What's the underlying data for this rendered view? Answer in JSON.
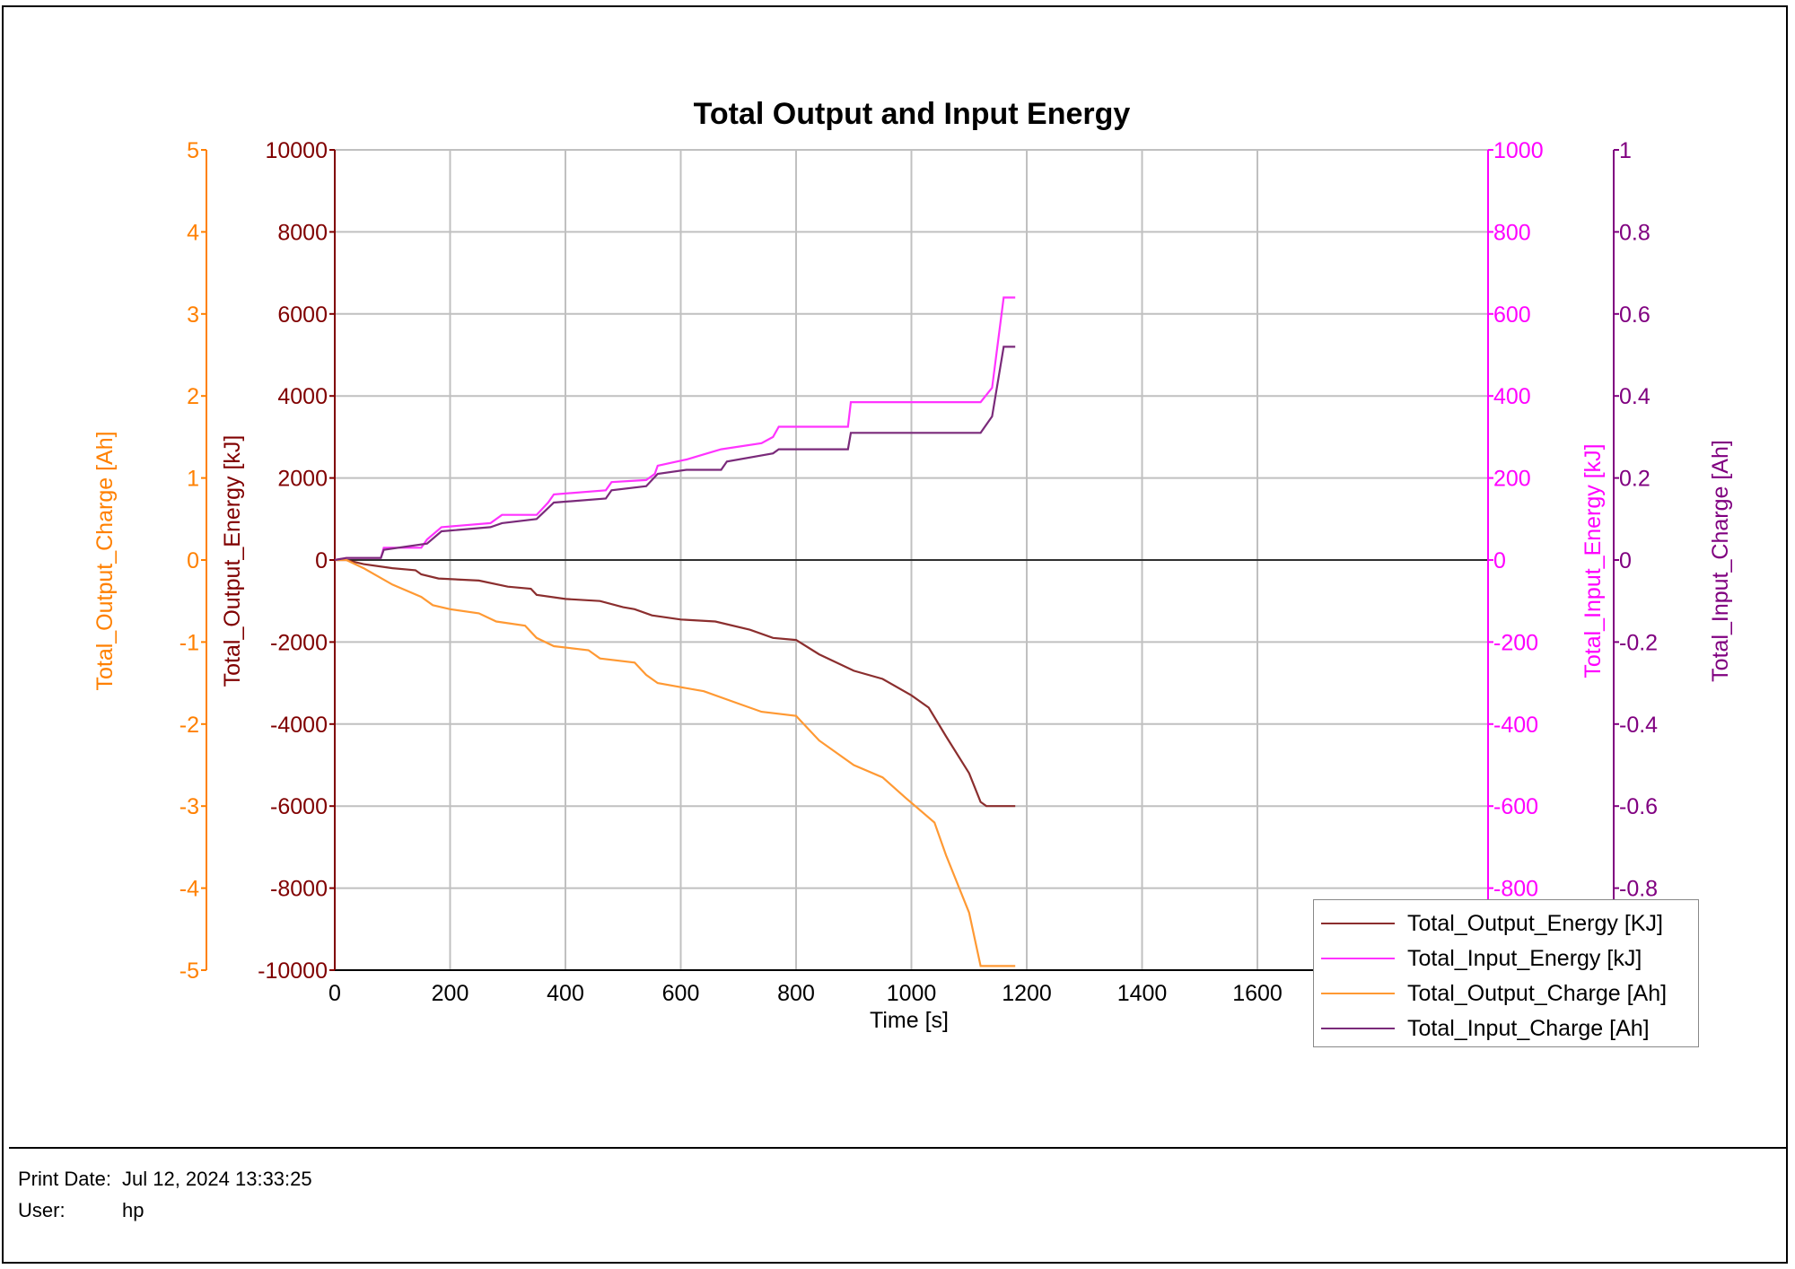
{
  "footer": {
    "print_date_label": "Print Date:",
    "print_date_value": "Jul 12, 2024 13:33:25",
    "user_label": "User:",
    "user_value": "hp"
  },
  "chart_data": {
    "type": "line",
    "title": "Total Output and Input Energy",
    "xlabel": "Time [s]",
    "xlim": [
      0,
      2000
    ],
    "xticks": [
      0,
      200,
      400,
      600,
      800,
      1000,
      1200,
      1400,
      1600
    ],
    "grid": true,
    "legend_position": "bottom-right",
    "axes": {
      "output_charge": {
        "label": "Total_Output_Charge [Ah]",
        "side": "left-outer",
        "ylim": [
          -5,
          5
        ],
        "ticks": [
          "5",
          "4",
          "3",
          "2",
          "1",
          "0",
          "-1",
          "-2",
          "-3",
          "-4",
          "-5"
        ],
        "color": "#ff8000"
      },
      "output_energy": {
        "label": "Total_Output_Energy [kJ]",
        "side": "left",
        "ylim": [
          -10000,
          10000
        ],
        "ticks": [
          "10000",
          "8000",
          "6000",
          "4000",
          "2000",
          "0",
          "-2000",
          "-4000",
          "-6000",
          "-8000",
          "-10000"
        ],
        "color": "#800000"
      },
      "input_energy": {
        "label": "Total_Input_Energy [kJ]",
        "side": "right",
        "ylim": [
          -1000,
          1000
        ],
        "ticks": [
          "1000",
          "800",
          "600",
          "400",
          "200",
          "0",
          "-200",
          "-400",
          "-600",
          "-800"
        ],
        "color": "#ff00ff"
      },
      "input_charge": {
        "label": "Total_Input_Charge [Ah]",
        "side": "right-outer",
        "ylim": [
          -1,
          1
        ],
        "ticks": [
          "1",
          "0.8",
          "0.6",
          "0.4",
          "0.2",
          "0",
          "-0.2",
          "-0.4",
          "-0.6",
          "-0.8"
        ],
        "color": "#800080"
      }
    },
    "series": [
      {
        "name": "Total_Output_Energy [KJ]",
        "axis": "output_energy",
        "color": "#8b2e2e",
        "x": [
          0,
          20,
          50,
          100,
          140,
          150,
          180,
          250,
          300,
          340,
          350,
          400,
          460,
          500,
          520,
          550,
          600,
          660,
          720,
          760,
          800,
          840,
          900,
          950,
          1000,
          1030,
          1060,
          1100,
          1120,
          1130,
          1180
        ],
        "y": [
          0,
          0,
          -100,
          -200,
          -250,
          -350,
          -450,
          -500,
          -650,
          -700,
          -850,
          -950,
          -1000,
          -1150,
          -1200,
          -1350,
          -1450,
          -1500,
          -1700,
          -1900,
          -1950,
          -2300,
          -2700,
          -2900,
          -3300,
          -3600,
          -4300,
          -5200,
          -5900,
          -6000,
          -6000
        ]
      },
      {
        "name": "Total_Input_Energy [kJ]",
        "axis": "input_energy",
        "color": "#ff33ff",
        "x": [
          0,
          20,
          80,
          85,
          150,
          160,
          185,
          270,
          290,
          350,
          370,
          380,
          470,
          480,
          540,
          555,
          560,
          610,
          670,
          740,
          760,
          770,
          890,
          895,
          1120,
          1140,
          1160,
          1180
        ],
        "y": [
          0,
          5,
          5,
          30,
          30,
          50,
          80,
          90,
          110,
          110,
          140,
          160,
          170,
          190,
          195,
          210,
          230,
          245,
          270,
          285,
          300,
          325,
          325,
          385,
          385,
          420,
          640,
          640
        ]
      },
      {
        "name": "Total_Output_Charge [Ah]",
        "axis": "output_charge",
        "color": "#ff9933",
        "x": [
          0,
          20,
          50,
          100,
          150,
          170,
          200,
          250,
          280,
          330,
          350,
          380,
          440,
          460,
          520,
          540,
          560,
          600,
          640,
          700,
          740,
          800,
          840,
          900,
          950,
          990,
          1040,
          1060,
          1100,
          1120,
          1180
        ],
        "y": [
          0,
          0,
          -0.1,
          -0.3,
          -0.45,
          -0.55,
          -0.6,
          -0.65,
          -0.75,
          -0.8,
          -0.95,
          -1.05,
          -1.1,
          -1.2,
          -1.25,
          -1.4,
          -1.5,
          -1.55,
          -1.6,
          -1.75,
          -1.85,
          -1.9,
          -2.2,
          -2.5,
          -2.65,
          -2.9,
          -3.2,
          -3.6,
          -4.3,
          -4.95,
          -4.95
        ]
      },
      {
        "name": "Total_Input_Charge [Ah]",
        "axis": "input_charge",
        "color": "#7a2a7a",
        "x": [
          0,
          20,
          80,
          85,
          160,
          185,
          270,
          290,
          350,
          380,
          470,
          480,
          540,
          560,
          610,
          670,
          680,
          760,
          770,
          890,
          895,
          1120,
          1140,
          1160,
          1180
        ],
        "y": [
          0,
          0.005,
          0.005,
          0.025,
          0.04,
          0.07,
          0.08,
          0.09,
          0.1,
          0.14,
          0.15,
          0.17,
          0.18,
          0.21,
          0.22,
          0.22,
          0.24,
          0.26,
          0.27,
          0.27,
          0.31,
          0.31,
          0.35,
          0.52,
          0.52
        ]
      }
    ]
  }
}
